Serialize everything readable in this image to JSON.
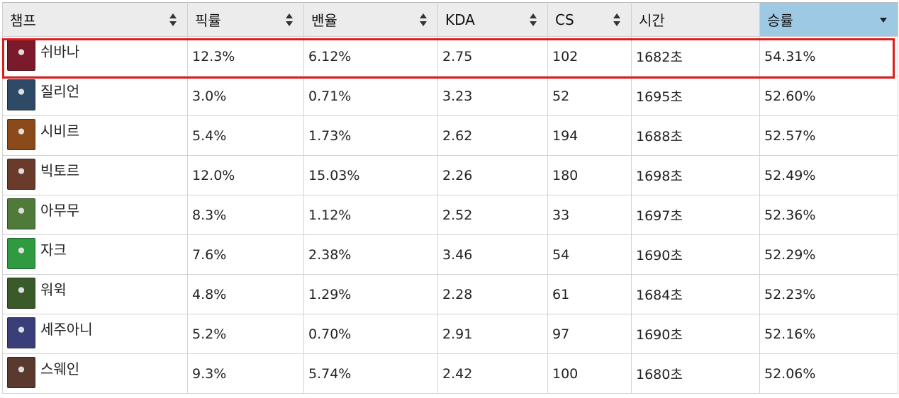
{
  "table": {
    "headers": [
      {
        "label": "챔프",
        "sort": "both"
      },
      {
        "label": "픽률",
        "sort": "both"
      },
      {
        "label": "밴율",
        "sort": "both"
      },
      {
        "label": "KDA",
        "sort": "both"
      },
      {
        "label": "CS",
        "sort": "both"
      },
      {
        "label": "시간",
        "sort": "none"
      },
      {
        "label": "승률",
        "sort": "desc"
      }
    ],
    "rows": [
      {
        "champ": "쉬바나",
        "portrait_color": "#7a1a2a",
        "pick": "12.3%",
        "ban": "6.12%",
        "kda": "2.75",
        "cs": "102",
        "time": "1682초",
        "win": "54.31%"
      },
      {
        "champ": "질리언",
        "portrait_color": "#2e4a66",
        "pick": "3.0%",
        "ban": "0.71%",
        "kda": "3.23",
        "cs": "52",
        "time": "1695초",
        "win": "52.60%"
      },
      {
        "champ": "시비르",
        "portrait_color": "#8a4a1a",
        "pick": "5.4%",
        "ban": "1.73%",
        "kda": "2.62",
        "cs": "194",
        "time": "1688초",
        "win": "52.57%"
      },
      {
        "champ": "빅토르",
        "portrait_color": "#6a3a2a",
        "pick": "12.0%",
        "ban": "15.03%",
        "kda": "2.26",
        "cs": "180",
        "time": "1698초",
        "win": "52.49%"
      },
      {
        "champ": "아무무",
        "portrait_color": "#4f7a3a",
        "pick": "8.3%",
        "ban": "1.12%",
        "kda": "2.52",
        "cs": "33",
        "time": "1697초",
        "win": "52.36%"
      },
      {
        "champ": "자크",
        "portrait_color": "#2f9a3f",
        "pick": "7.6%",
        "ban": "2.38%",
        "kda": "3.46",
        "cs": "54",
        "time": "1690초",
        "win": "52.29%"
      },
      {
        "champ": "워윅",
        "portrait_color": "#3a5a2a",
        "pick": "4.8%",
        "ban": "1.29%",
        "kda": "2.28",
        "cs": "61",
        "time": "1684초",
        "win": "52.23%"
      },
      {
        "champ": "세주아니",
        "portrait_color": "#3a3f7a",
        "pick": "5.2%",
        "ban": "0.70%",
        "kda": "2.91",
        "cs": "97",
        "time": "1690초",
        "win": "52.16%"
      },
      {
        "champ": "스웨인",
        "portrait_color": "#5a3a2f",
        "pick": "9.3%",
        "ban": "5.74%",
        "kda": "2.42",
        "cs": "100",
        "time": "1680초",
        "win": "52.06%"
      }
    ]
  },
  "colors": {
    "highlight": "#e01b1b",
    "sorted_header": "#9ec9e4"
  },
  "highlight_row_index": 0
}
